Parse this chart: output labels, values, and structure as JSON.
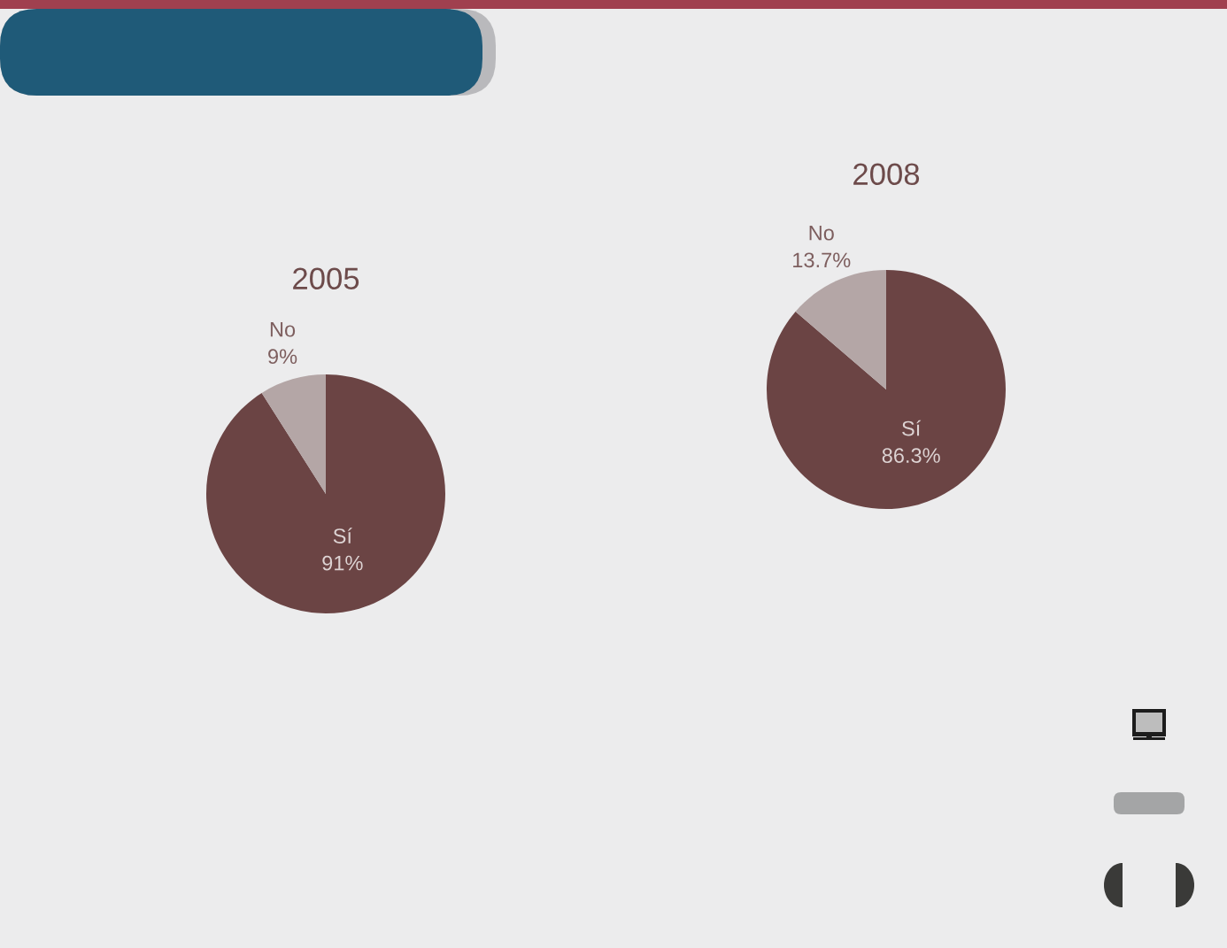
{
  "chart_data": [
    {
      "type": "pie",
      "title": "2005",
      "categories": [
        "Sí",
        "No"
      ],
      "values": [
        91,
        9
      ],
      "colors": [
        "#6b4444",
        "#b4a6a6"
      ],
      "value_labels": [
        "91%",
        "9%"
      ]
    },
    {
      "type": "pie",
      "title": "2008",
      "categories": [
        "Sí",
        "No"
      ],
      "values": [
        86.3,
        13.7
      ],
      "colors": [
        "#6b4444",
        "#b4a6a6"
      ],
      "value_labels": [
        "86.3%",
        "13.7%"
      ]
    }
  ]
}
